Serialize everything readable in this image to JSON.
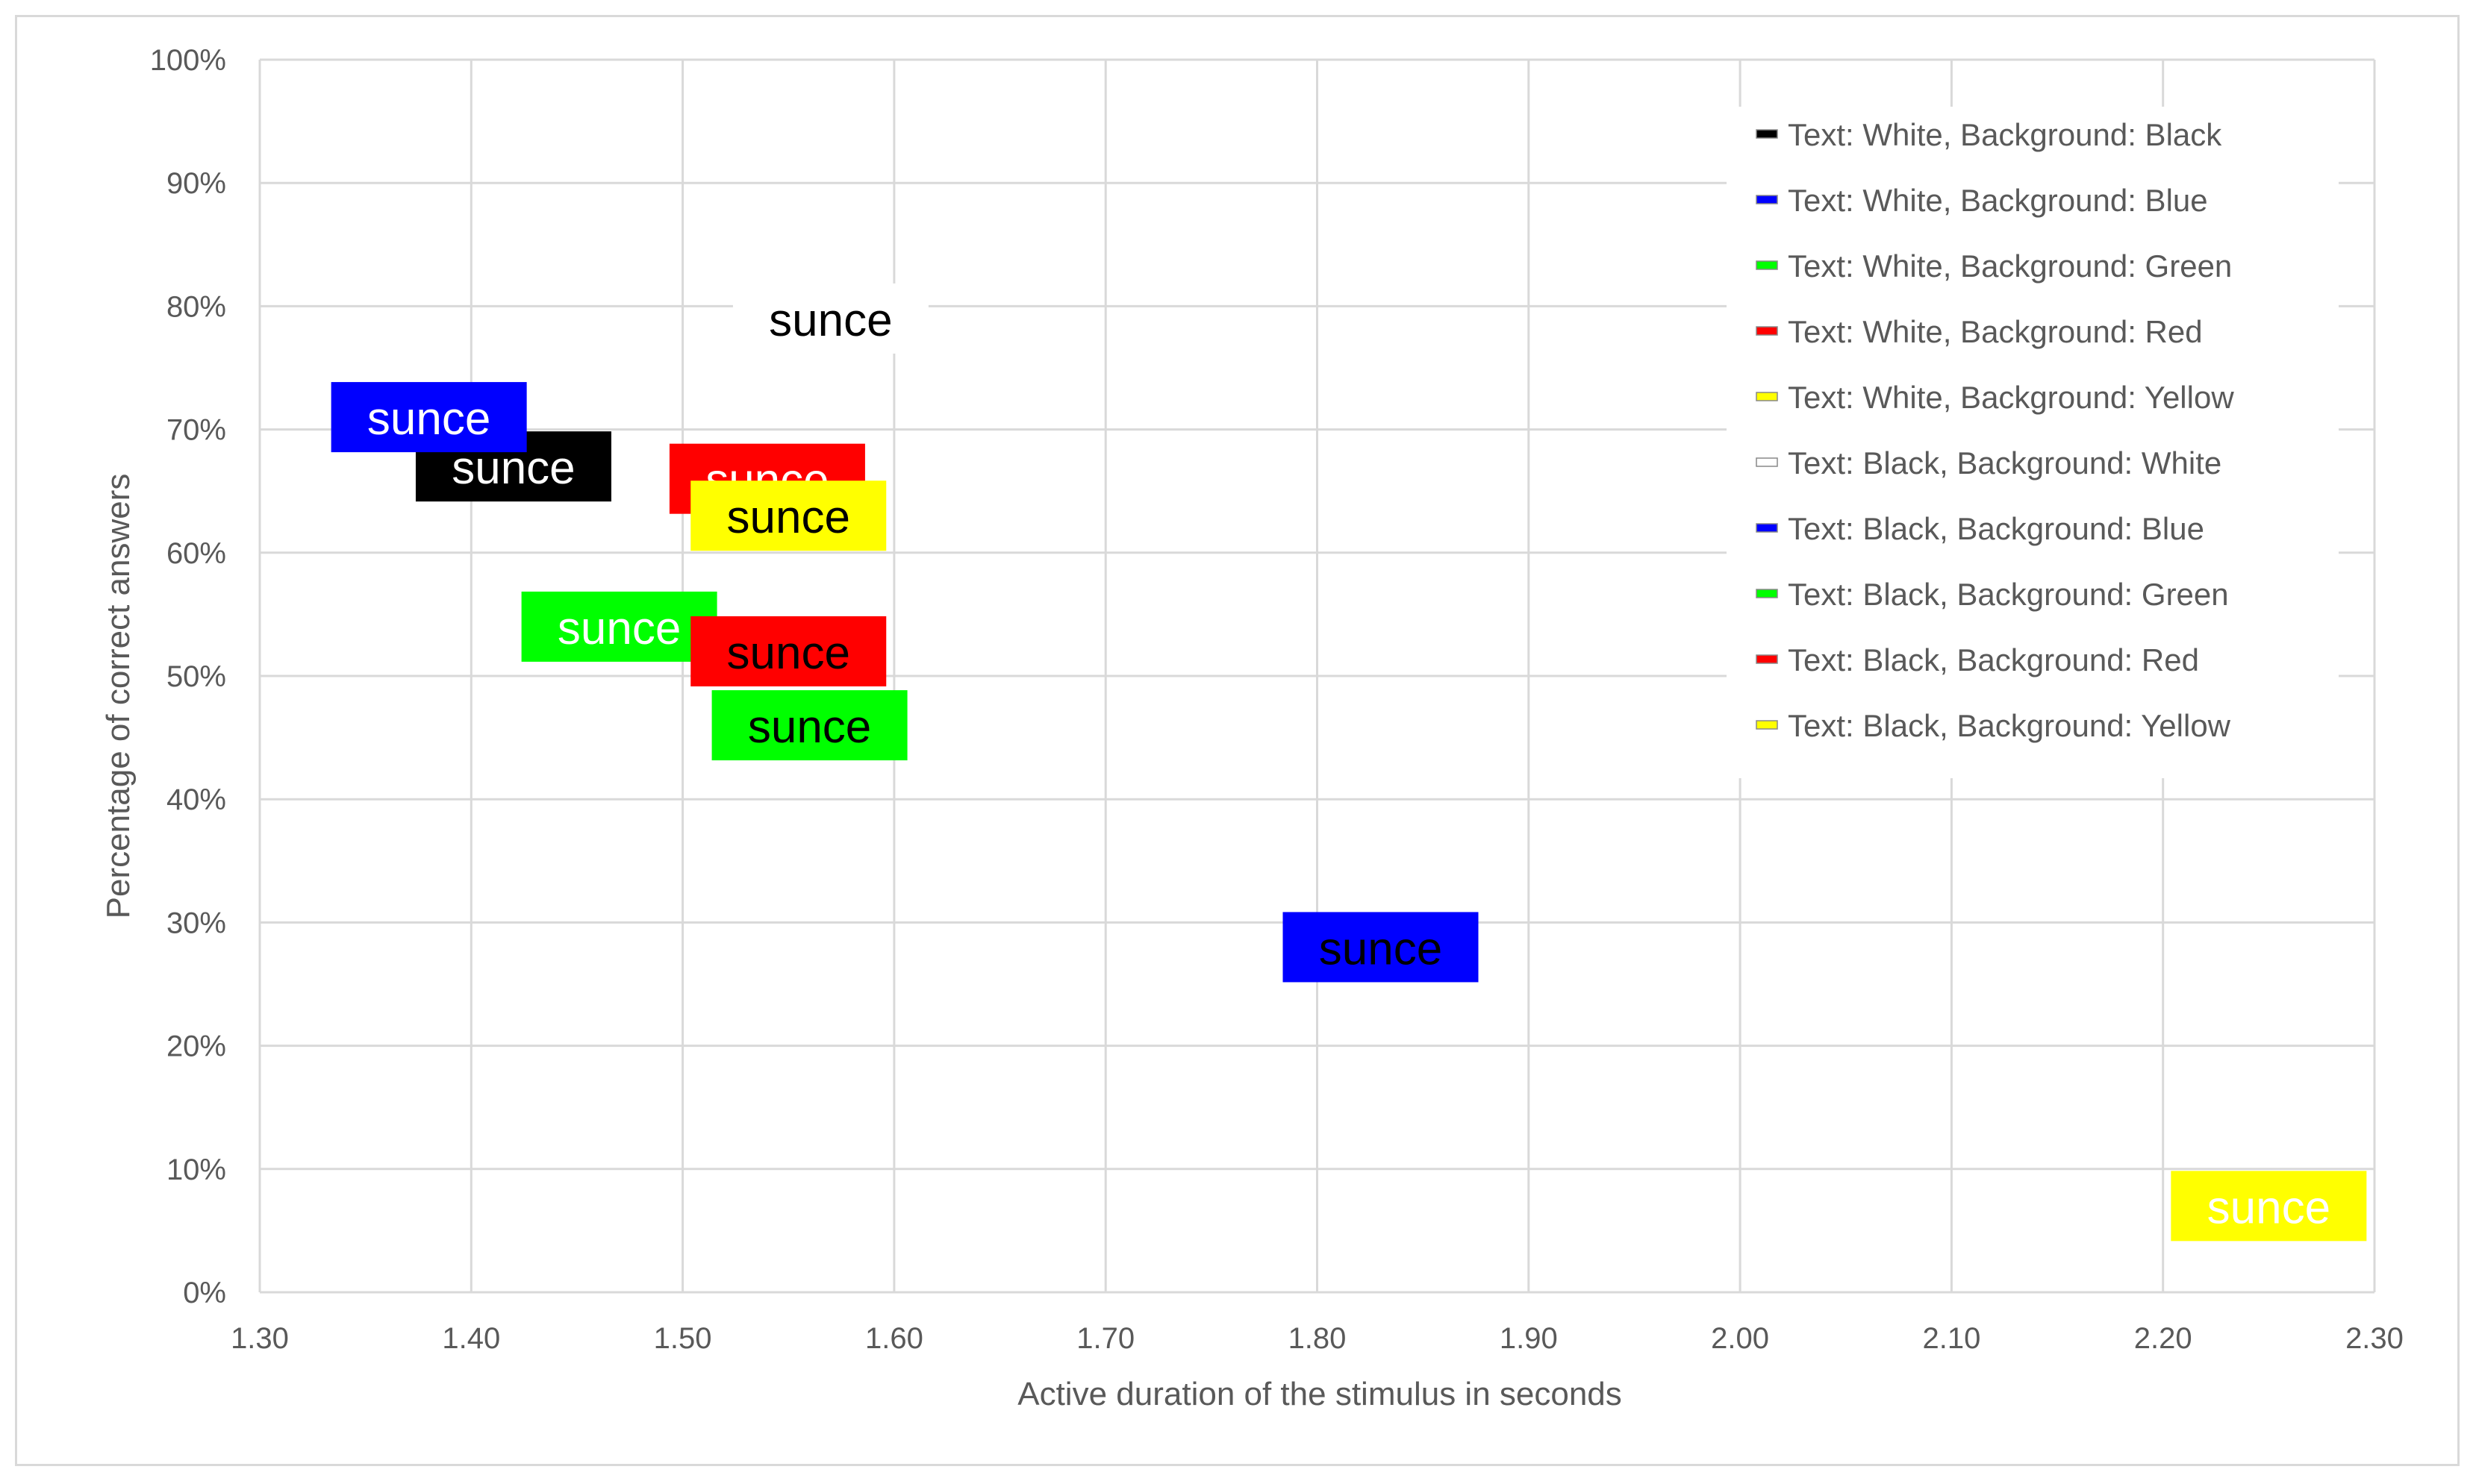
{
  "chart_data": {
    "type": "scatter",
    "title": "",
    "xlabel": "Active duration of the stimulus in seconds",
    "ylabel": "Percentage of correct answers",
    "xlim": [
      1.3,
      2.3
    ],
    "ylim": [
      0,
      1
    ],
    "x_ticks": [
      "1.30",
      "1.40",
      "1.50",
      "1.60",
      "1.70",
      "1.80",
      "1.90",
      "2.00",
      "2.10",
      "2.20",
      "2.30"
    ],
    "y_ticks": [
      "0%",
      "10%",
      "20%",
      "30%",
      "40%",
      "50%",
      "60%",
      "70%",
      "80%",
      "90%",
      "100%"
    ],
    "grid": true,
    "legend_position": "top-right",
    "marker_text": "sunce",
    "series": [
      {
        "name": "Text: White, Background: Black",
        "text_color": "#ffffff",
        "bg_color": "#000000",
        "points": [
          {
            "x": 1.42,
            "y": 0.67
          }
        ]
      },
      {
        "name": "Text: White, Background: Blue",
        "text_color": "#ffffff",
        "bg_color": "#0000ff",
        "points": [
          {
            "x": 1.38,
            "y": 0.71
          }
        ]
      },
      {
        "name": "Text: White, Background: Green",
        "text_color": "#ffffff",
        "bg_color": "#00ff00",
        "points": [
          {
            "x": 1.47,
            "y": 0.54
          }
        ]
      },
      {
        "name": "Text: White, Background: Red",
        "text_color": "#ffffff",
        "bg_color": "#ff0000",
        "points": [
          {
            "x": 1.54,
            "y": 0.66
          }
        ]
      },
      {
        "name": "Text: White, Background: Yellow",
        "text_color": "#ffffff",
        "bg_color": "#ffff00",
        "points": [
          {
            "x": 2.25,
            "y": 0.07
          }
        ]
      },
      {
        "name": "Text: Black, Background: White",
        "text_color": "#000000",
        "bg_color": "#ffffff",
        "points": [
          {
            "x": 1.57,
            "y": 0.79
          }
        ]
      },
      {
        "name": "Text: Black, Background: Blue",
        "text_color": "#000000",
        "bg_color": "#0000ff",
        "points": [
          {
            "x": 1.83,
            "y": 0.28
          }
        ]
      },
      {
        "name": "Text: Black, Background: Green",
        "text_color": "#000000",
        "bg_color": "#00ff00",
        "points": [
          {
            "x": 1.56,
            "y": 0.46
          }
        ]
      },
      {
        "name": "Text: Black, Background: Red",
        "text_color": "#000000",
        "bg_color": "#ff0000",
        "points": [
          {
            "x": 1.55,
            "y": 0.52
          }
        ]
      },
      {
        "name": "Text: Black, Background: Yellow",
        "text_color": "#000000",
        "bg_color": "#ffff00",
        "points": [
          {
            "x": 1.55,
            "y": 0.63
          }
        ]
      }
    ]
  }
}
